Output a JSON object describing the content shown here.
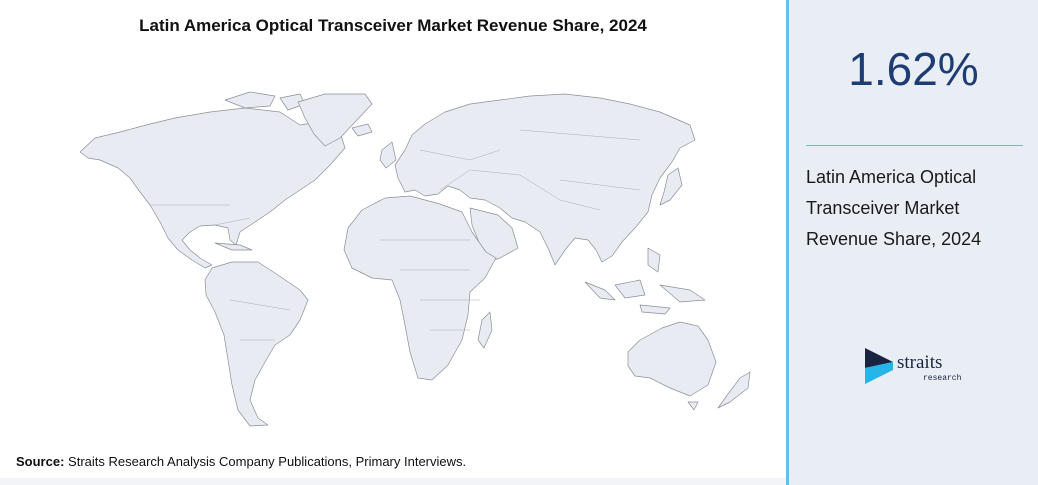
{
  "header": {
    "title": "Latin America Optical Transceiver Market Revenue Share, 2024"
  },
  "stat": {
    "value": "1.62%",
    "description": "Latin America Optical Transceiver Market Revenue Share, 2024"
  },
  "source": {
    "label": "Source:",
    "text": "Straits Research Analysis Company Publications, Primary Interviews."
  },
  "logo": {
    "name": "straits",
    "tagline": "research"
  }
}
